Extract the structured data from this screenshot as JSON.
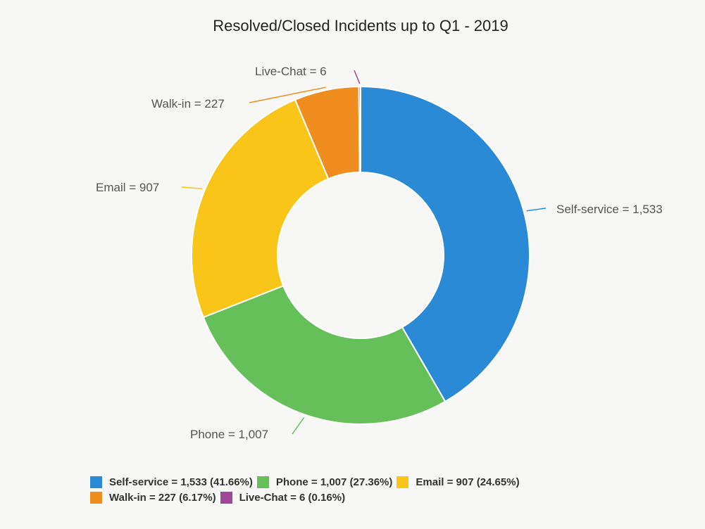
{
  "chart_data": {
    "type": "pie",
    "title": "Resolved/Closed Incidents up to Q1 - 2019",
    "categories": [
      "Self-service",
      "Phone",
      "Email",
      "Walk-in",
      "Live-Chat"
    ],
    "values": [
      1533,
      1007,
      907,
      227,
      6
    ],
    "percentages": [
      41.66,
      27.36,
      24.65,
      6.17,
      0.16
    ],
    "slice_labels": [
      "Self-service = 1,533",
      "Phone = 1,007",
      "Email = 907",
      "Walk-in = 227",
      "Live-Chat = 6"
    ],
    "legend_labels": [
      "Self-service = 1,533 (41.66%)",
      "Phone = 1,007 (27.36%)",
      "Email = 907 (24.65%)",
      "Walk-in = 227 (6.17%)",
      "Live-Chat = 6 (0.16%)"
    ],
    "colors": [
      "#2b8ad6",
      "#66c05a",
      "#f9c519",
      "#ef8d1e",
      "#a0479a"
    ],
    "donut": true,
    "legend_position": "bottom"
  }
}
